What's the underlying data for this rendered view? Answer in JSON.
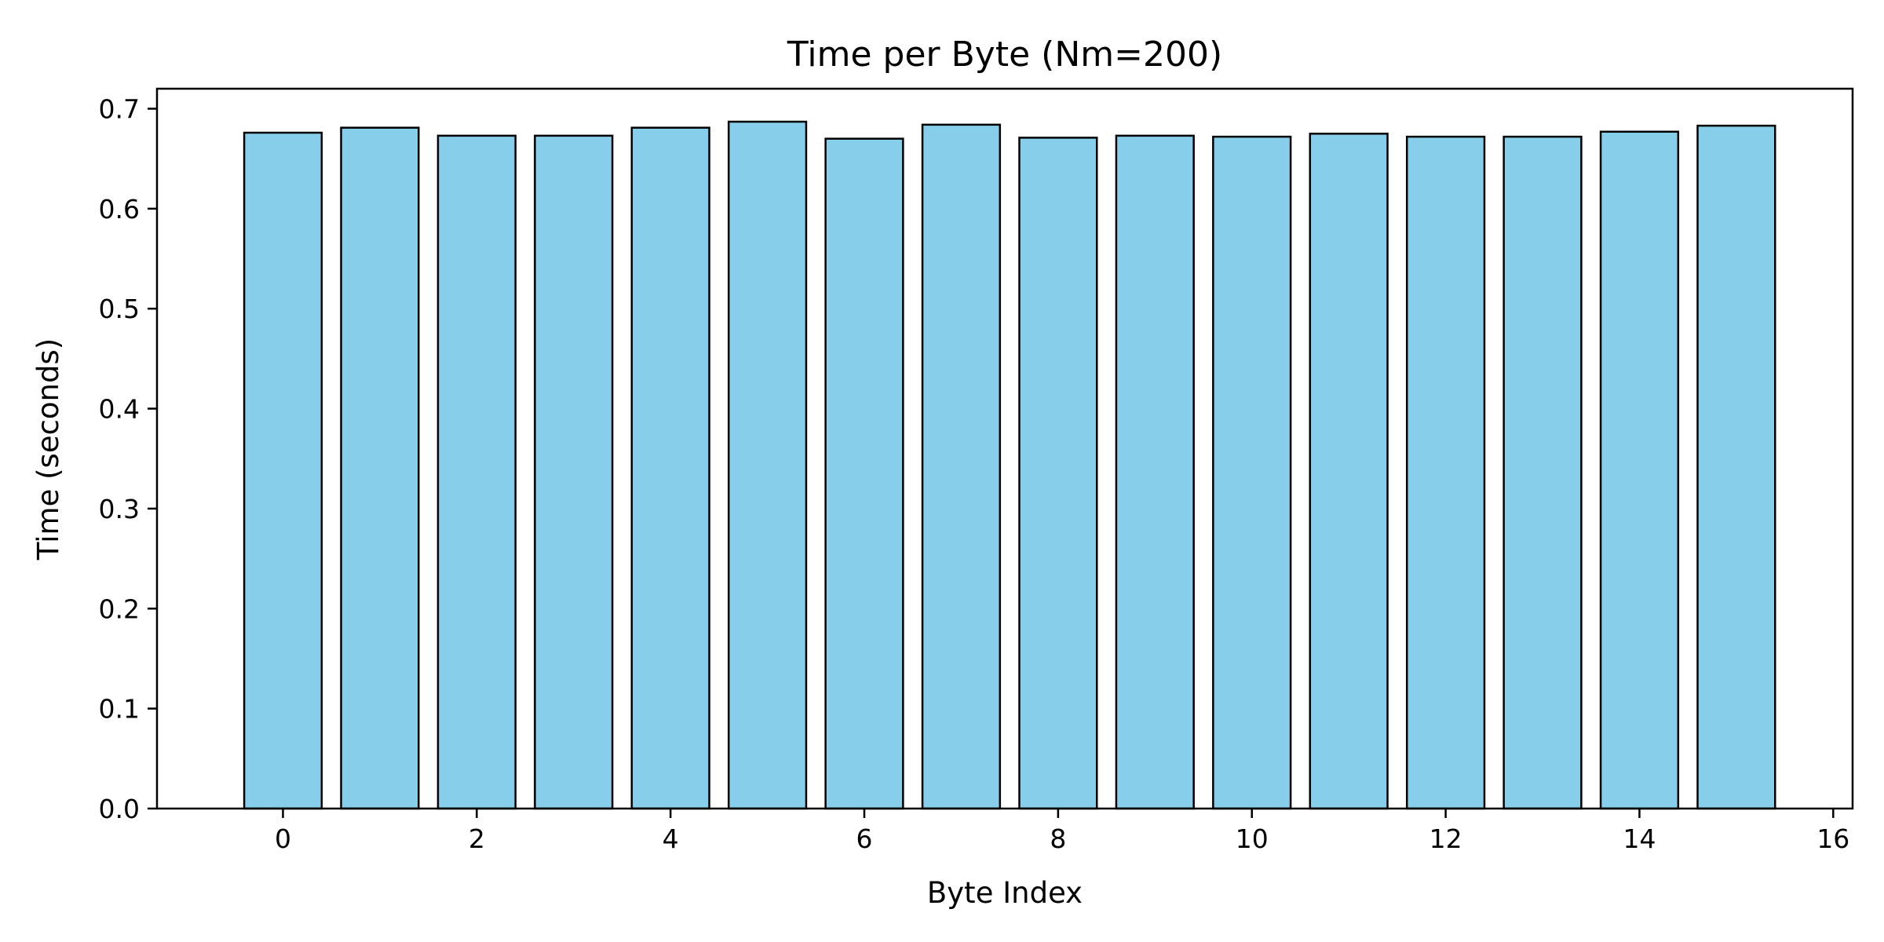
{
  "chart_data": {
    "type": "bar",
    "title": "Time per Byte (Nm=200)",
    "xlabel": "Byte Index",
    "ylabel": "Time (seconds)",
    "categories": [
      0,
      1,
      2,
      3,
      4,
      5,
      6,
      7,
      8,
      9,
      10,
      11,
      12,
      13,
      14,
      15
    ],
    "values": [
      0.676,
      0.681,
      0.673,
      0.673,
      0.681,
      0.687,
      0.67,
      0.684,
      0.671,
      0.673,
      0.672,
      0.675,
      0.672,
      0.672,
      0.677,
      0.683
    ],
    "xlim": [
      -1.3,
      16.2
    ],
    "ylim": [
      0,
      0.72
    ],
    "xticks": [
      0,
      2,
      4,
      6,
      8,
      10,
      12,
      14,
      16
    ],
    "yticks": [
      0.0,
      0.1,
      0.2,
      0.3,
      0.4,
      0.5,
      0.6,
      0.7
    ],
    "ytick_labels": [
      "0.0",
      "0.1",
      "0.2",
      "0.3",
      "0.4",
      "0.5",
      "0.6",
      "0.7"
    ],
    "bar_color": "#87CEEB",
    "edge_color": "#000000",
    "grid": false,
    "legend": "none"
  }
}
